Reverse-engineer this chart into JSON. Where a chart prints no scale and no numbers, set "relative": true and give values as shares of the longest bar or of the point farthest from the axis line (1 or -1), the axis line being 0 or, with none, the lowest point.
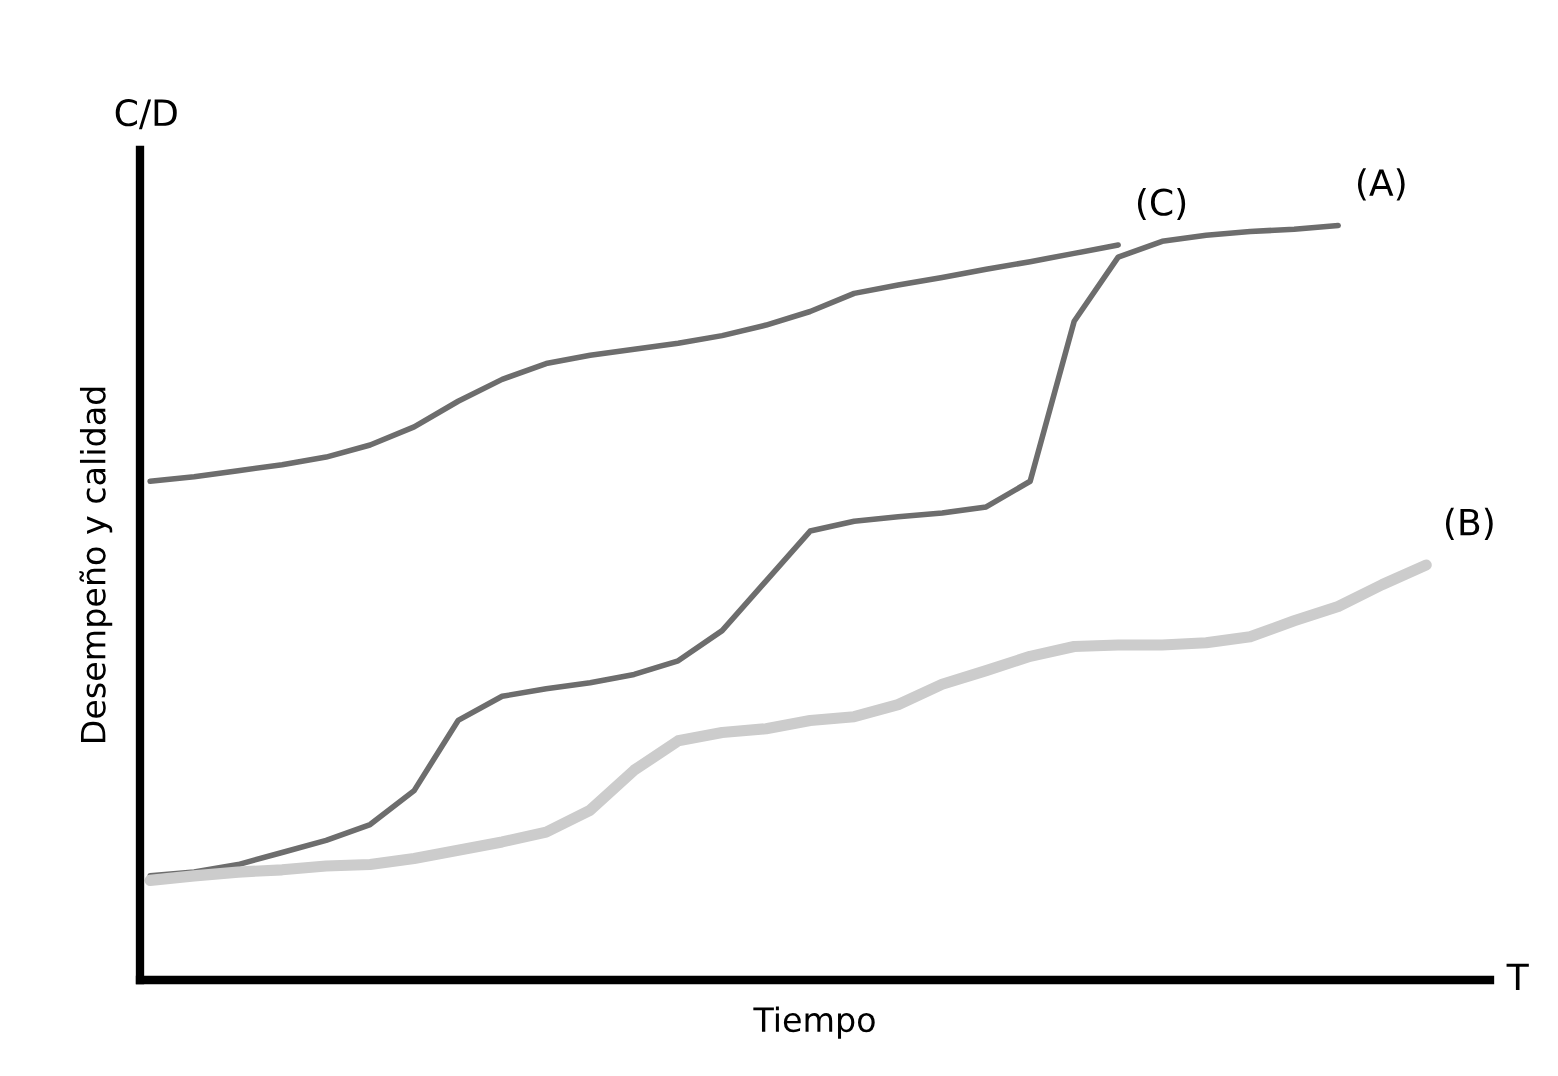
{
  "chart_data": {
    "type": "line",
    "relative": true,
    "xlabel": "Tiempo",
    "ylabel": "Desempeño y calidad",
    "annotations": [
      "C/D",
      "T"
    ],
    "legend": false,
    "grid": false,
    "marker": "none",
    "line_style": "solid",
    "categories": [
      null,
      null,
      null,
      null,
      null,
      null,
      null,
      null,
      null,
      null,
      null,
      null,
      null,
      null,
      null,
      null,
      null,
      null,
      null,
      null,
      null,
      null,
      null,
      null,
      null,
      null,
      null,
      null,
      null,
      null
    ],
    "series": [
      {
        "name": "(C)",
        "color": "#6d6d6d",
        "values": [
          0.661,
          0.667,
          0.675,
          0.683,
          0.693,
          0.709,
          0.733,
          0.767,
          0.796,
          0.817,
          0.828,
          0.836,
          0.844,
          0.854,
          0.868,
          0.886,
          0.91,
          0.921,
          0.931,
          0.942,
          0.952,
          0.963,
          0.974,
          null,
          null,
          null,
          null,
          null,
          null,
          null
        ]
      },
      {
        "name": "(A)",
        "color": "#6d6d6d",
        "values": [
          0.138,
          0.143,
          0.153,
          0.169,
          0.185,
          0.206,
          0.251,
          0.344,
          0.376,
          0.386,
          0.394,
          0.405,
          0.423,
          0.463,
          0.529,
          0.595,
          0.608,
          0.614,
          0.619,
          0.627,
          0.661,
          0.873,
          0.958,
          0.979,
          0.987,
          0.992,
          0.995,
          1.0,
          null,
          null
        ]
      },
      {
        "name": "(B)",
        "color": "#cccccc",
        "values": [
          0.132,
          0.138,
          0.143,
          0.146,
          0.151,
          0.153,
          0.161,
          0.172,
          0.183,
          0.196,
          0.225,
          0.278,
          0.317,
          0.328,
          0.333,
          0.344,
          0.349,
          0.365,
          0.392,
          0.41,
          0.429,
          0.442,
          0.444,
          0.444,
          0.447,
          0.455,
          0.476,
          0.495,
          0.524,
          0.55
        ]
      }
    ]
  }
}
